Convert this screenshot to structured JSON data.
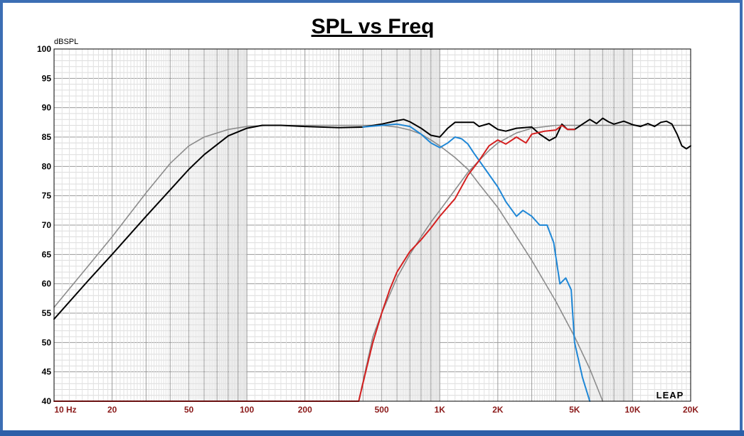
{
  "chart_data": {
    "type": "line",
    "title": "SPL vs Freq",
    "ylabel": "dBSPL",
    "xlabel": "",
    "xscale": "log",
    "xlim": [
      10,
      20000
    ],
    "ylim": [
      40,
      100
    ],
    "grid": true,
    "y_ticks": [
      100,
      95,
      90,
      85,
      80,
      75,
      70,
      65,
      60,
      55,
      50,
      45,
      40
    ],
    "y_tick_labels": [
      "100",
      "95",
      "90",
      "85",
      "80",
      "75",
      "70",
      "65",
      "60",
      "55",
      "50",
      "45",
      "40"
    ],
    "x_ticks": [
      10,
      20,
      50,
      100,
      200,
      500,
      1000,
      2000,
      5000,
      10000,
      20000
    ],
    "x_tick_labels": [
      "10 Hz",
      "20",
      "50",
      "100",
      "200",
      "500",
      "1K",
      "2K",
      "5K",
      "10K",
      "20K"
    ],
    "watermark": "LEAP",
    "series": [
      {
        "color": "#8c8c8c",
        "points": [
          [
            10,
            56
          ],
          [
            15,
            63
          ],
          [
            20,
            68
          ],
          [
            30,
            75.5
          ],
          [
            40,
            80.5
          ],
          [
            50,
            83.5
          ],
          [
            60,
            85
          ],
          [
            80,
            86.3
          ],
          [
            100,
            86.8
          ],
          [
            130,
            87
          ],
          [
            200,
            87
          ],
          [
            400,
            87
          ],
          [
            500,
            87
          ],
          [
            600,
            86.7
          ],
          [
            700,
            86.2
          ],
          [
            800,
            85.5
          ],
          [
            900,
            84.5
          ],
          [
            1000,
            83.5
          ],
          [
            1200,
            81.5
          ],
          [
            1400,
            79.5
          ],
          [
            1600,
            77
          ],
          [
            2000,
            73
          ],
          [
            3000,
            64
          ],
          [
            4000,
            57
          ],
          [
            5000,
            51
          ],
          [
            6000,
            45.5
          ],
          [
            7000,
            40
          ]
        ]
      },
      {
        "color": "#8c8c8c",
        "points": [
          [
            380,
            40
          ],
          [
            450,
            51
          ],
          [
            500,
            55
          ],
          [
            600,
            61
          ],
          [
            700,
            65
          ],
          [
            800,
            68
          ],
          [
            900,
            70.5
          ],
          [
            1000,
            72.5
          ],
          [
            1200,
            76
          ],
          [
            1400,
            79
          ],
          [
            1600,
            81
          ],
          [
            1800,
            82.7
          ],
          [
            2000,
            84
          ],
          [
            2500,
            85.7
          ],
          [
            3000,
            86.5
          ],
          [
            4000,
            87
          ],
          [
            6000,
            87
          ],
          [
            10000,
            87
          ],
          [
            20000,
            87
          ]
        ]
      },
      {
        "color": "#000000",
        "points": [
          [
            10,
            54
          ],
          [
            15,
            60.5
          ],
          [
            20,
            65
          ],
          [
            30,
            71.5
          ],
          [
            40,
            76
          ],
          [
            50,
            79.5
          ],
          [
            60,
            82
          ],
          [
            80,
            85.2
          ],
          [
            100,
            86.5
          ],
          [
            120,
            87
          ],
          [
            150,
            87
          ],
          [
            200,
            86.8
          ],
          [
            300,
            86.6
          ],
          [
            400,
            86.7
          ],
          [
            500,
            87.2
          ],
          [
            600,
            87.8
          ],
          [
            650,
            88
          ],
          [
            700,
            87.6
          ],
          [
            800,
            86.5
          ],
          [
            900,
            85.3
          ],
          [
            1000,
            85
          ],
          [
            1100,
            86.5
          ],
          [
            1200,
            87.5
          ],
          [
            1500,
            87.5
          ],
          [
            1600,
            86.8
          ],
          [
            1800,
            87.3
          ],
          [
            2000,
            86.3
          ],
          [
            2200,
            86
          ],
          [
            2500,
            86.5
          ],
          [
            3000,
            86.7
          ],
          [
            3300,
            85.5
          ],
          [
            3700,
            84.4
          ],
          [
            4000,
            85
          ],
          [
            4300,
            87.2
          ],
          [
            4600,
            86.3
          ],
          [
            5000,
            86.3
          ],
          [
            5500,
            87.2
          ],
          [
            6000,
            88
          ],
          [
            6500,
            87.3
          ],
          [
            7000,
            88.2
          ],
          [
            7500,
            87.6
          ],
          [
            8000,
            87.2
          ],
          [
            9000,
            87.7
          ],
          [
            10000,
            87.1
          ],
          [
            11000,
            86.8
          ],
          [
            12000,
            87.3
          ],
          [
            13000,
            86.8
          ],
          [
            14000,
            87.5
          ],
          [
            15000,
            87.7
          ],
          [
            16000,
            87.2
          ],
          [
            17000,
            85.5
          ],
          [
            18000,
            83.5
          ],
          [
            19000,
            83
          ],
          [
            20000,
            83.5
          ]
        ]
      },
      {
        "color": "#1f87d6",
        "points": [
          [
            400,
            86.7
          ],
          [
            500,
            87
          ],
          [
            600,
            87.2
          ],
          [
            700,
            86.8
          ],
          [
            800,
            85.5
          ],
          [
            900,
            84
          ],
          [
            1000,
            83.2
          ],
          [
            1100,
            84
          ],
          [
            1200,
            85
          ],
          [
            1300,
            84.7
          ],
          [
            1400,
            83.8
          ],
          [
            1500,
            82.3
          ],
          [
            1700,
            79.8
          ],
          [
            2000,
            76.5
          ],
          [
            2200,
            74
          ],
          [
            2500,
            71.5
          ],
          [
            2700,
            72.5
          ],
          [
            3000,
            71.5
          ],
          [
            3300,
            70
          ],
          [
            3600,
            70
          ],
          [
            3900,
            67
          ],
          [
            4200,
            60
          ],
          [
            4500,
            61
          ],
          [
            4800,
            59
          ],
          [
            5000,
            50
          ],
          [
            5500,
            44
          ],
          [
            6000,
            40
          ]
        ]
      },
      {
        "color": "#d42020",
        "points": [
          [
            10,
            40
          ],
          [
            380,
            40
          ],
          [
            420,
            46
          ],
          [
            450,
            50
          ],
          [
            500,
            55
          ],
          [
            550,
            59
          ],
          [
            600,
            62
          ],
          [
            700,
            65.5
          ],
          [
            800,
            67.5
          ],
          [
            900,
            69.5
          ],
          [
            1000,
            71.5
          ],
          [
            1200,
            74.5
          ],
          [
            1400,
            78.5
          ],
          [
            1600,
            81
          ],
          [
            1800,
            83.5
          ],
          [
            2000,
            84.5
          ],
          [
            2200,
            83.8
          ],
          [
            2500,
            85
          ],
          [
            2800,
            84
          ],
          [
            3000,
            85.5
          ],
          [
            3500,
            86
          ],
          [
            4000,
            86.2
          ],
          [
            4300,
            87
          ],
          [
            4600,
            86.3
          ],
          [
            5000,
            86.3
          ]
        ]
      }
    ]
  }
}
